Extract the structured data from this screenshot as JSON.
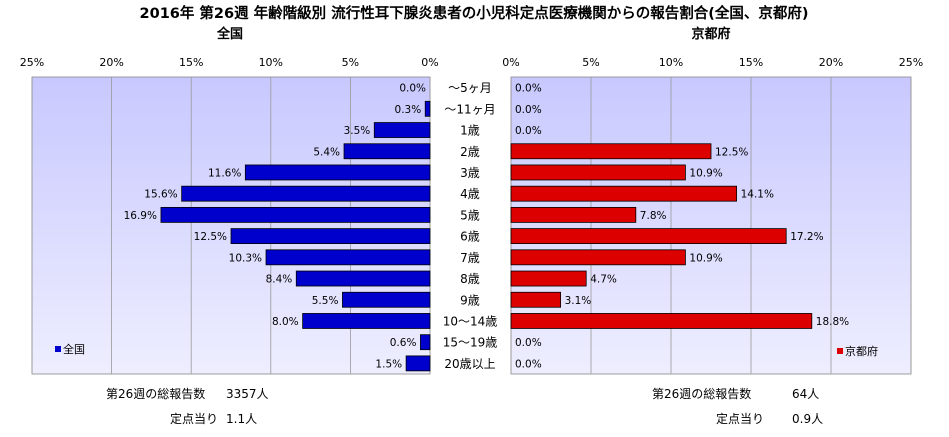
{
  "title": "2016年 第26週 年齢階級別 流行性耳下腺炎患者の小児科定点医療機関からの報告割合(全国、京都府)",
  "chart_data": {
    "type": "bar",
    "orientation": "horizontal-butterfly",
    "categories": [
      "～5ヶ月",
      "～11ヶ月",
      "1歳",
      "2歳",
      "3歳",
      "4歳",
      "5歳",
      "6歳",
      "7歳",
      "8歳",
      "9歳",
      "10～14歳",
      "15～19歳",
      "20歳以上"
    ],
    "xlim": [
      0,
      25
    ],
    "ticks": [
      "25%",
      "20%",
      "15%",
      "10%",
      "5%",
      "0%"
    ],
    "ticks_right": [
      "0%",
      "5%",
      "10%",
      "15%",
      "20%",
      "25%"
    ],
    "panels": [
      {
        "name": "全国",
        "legend": "全国",
        "color": "#0000cc",
        "values": [
          0.0,
          0.3,
          3.5,
          5.4,
          11.6,
          15.6,
          16.9,
          12.5,
          10.3,
          8.4,
          5.5,
          8.0,
          0.6,
          1.5
        ],
        "labels": [
          "0.0%",
          "0.3%",
          "3.5%",
          "5.4%",
          "11.6%",
          "15.6%",
          "16.9%",
          "12.5%",
          "10.3%",
          "8.4%",
          "5.5%",
          "8.0%",
          "0.6%",
          "1.5%"
        ],
        "total_label": "第26週の総報告数",
        "total_value": "3357人",
        "per_label": "定点当り",
        "per_value": "1.1人"
      },
      {
        "name": "京都府",
        "legend": "京都府",
        "color": "#dd0000",
        "values": [
          0.0,
          0.0,
          0.0,
          12.5,
          10.9,
          14.1,
          7.8,
          17.2,
          10.9,
          4.7,
          3.1,
          18.8,
          0.0,
          0.0
        ],
        "labels": [
          "0.0%",
          "0.0%",
          "0.0%",
          "12.5%",
          "10.9%",
          "14.1%",
          "7.8%",
          "17.2%",
          "10.9%",
          "4.7%",
          "3.1%",
          "18.8%",
          "0.0%",
          "0.0%"
        ],
        "total_label": "第26週の総報告数",
        "total_value": "64人",
        "per_label": "定点当り",
        "per_value": "0.9人"
      }
    ]
  }
}
